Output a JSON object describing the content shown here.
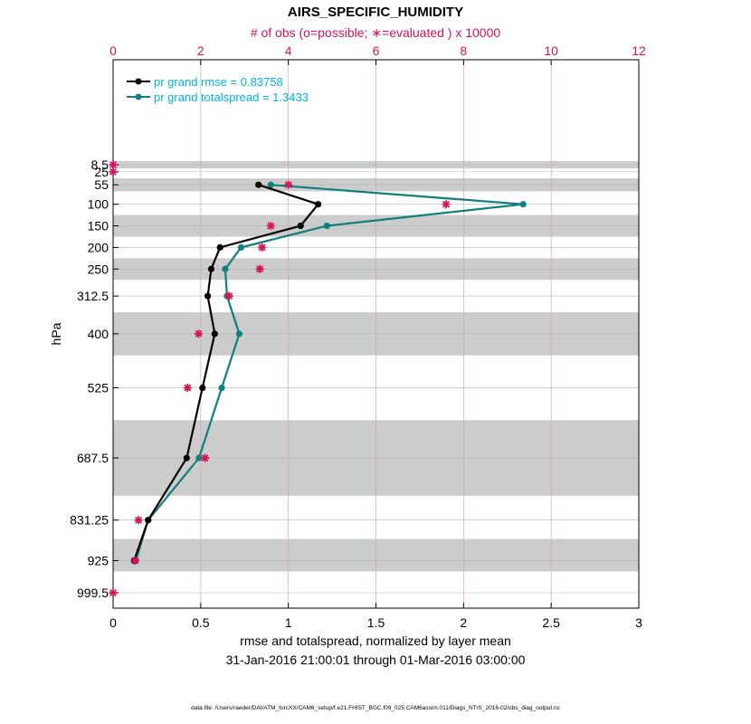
{
  "chart_data": {
    "type": "line",
    "title": "AIRS_SPECIFIC_HUMIDITY",
    "top_axis_label": "# of obs (o=possible; ∗=evaluated ) x 10000",
    "xlabel": "rmse and totalspread, normalized by layer mean",
    "subtitle": "31-Jan-2016 21:00:01 through 01-Mar-2016 03:00:00",
    "ylabel": "hPa",
    "footnote": "data file: /Users/raeder/DAI/ATM_forcXX/CAM6_setup/f.e21.FHIST_BGC.f09_025.CAM6assim.011/Diags_NTrS_2016-02/obs_diag_output.nc",
    "xlim": [
      0,
      3
    ],
    "top_xlim": [
      0,
      12
    ],
    "x_ticks": [
      "0",
      "0.5",
      "1",
      "1.5",
      "2",
      "2.5",
      "3"
    ],
    "top_ticks": [
      "0",
      "2",
      "4",
      "6",
      "8",
      "10",
      "12"
    ],
    "y_ticks": [
      "8.5",
      "25",
      "55",
      "100",
      "150",
      "200",
      "250",
      "312.5",
      "400",
      "525",
      "687.5",
      "831.25",
      "925",
      "999.5"
    ],
    "levels": [
      8.5,
      25,
      55,
      100,
      150,
      200,
      250,
      312.5,
      400,
      525,
      687.5,
      831.25,
      925,
      999.5
    ],
    "shaded_bands_hPa": [
      [
        0,
        17
      ],
      [
        40,
        70
      ],
      [
        125,
        175
      ],
      [
        225,
        275
      ],
      [
        350,
        450
      ],
      [
        600,
        775
      ],
      [
        875,
        950
      ]
    ],
    "series": [
      {
        "name": "pr grand rmse",
        "legend": "pr grand rmse = 0.83758",
        "color": "#000000",
        "levels": [
          55,
          100,
          150,
          200,
          250,
          312.5,
          400,
          525,
          687.5,
          831.25,
          925
        ],
        "values": [
          0.83,
          1.17,
          1.07,
          0.61,
          0.56,
          0.54,
          0.58,
          0.51,
          0.42,
          0.2,
          0.12
        ]
      },
      {
        "name": "pr grand totalspread",
        "legend": "pr grand totalspread = 1.3433",
        "color": "#0f7f7f",
        "levels": [
          55,
          100,
          150,
          200,
          250,
          312.5,
          400,
          525,
          687.5,
          831.25,
          925
        ],
        "values": [
          0.9,
          2.34,
          1.22,
          0.73,
          0.64,
          0.65,
          0.72,
          0.62,
          0.49,
          0.2,
          0.13
        ]
      }
    ],
    "obs_counts_x10000": {
      "levels": [
        8.5,
        25,
        55,
        100,
        150,
        200,
        250,
        312.5,
        400,
        525,
        687.5,
        831.25,
        925,
        999.5
      ],
      "evaluated": [
        0,
        0,
        4.0,
        7.6,
        3.6,
        3.4,
        3.35,
        2.65,
        1.95,
        1.7,
        2.1,
        0.58,
        0.5,
        0
      ],
      "color": "#d6135a"
    }
  }
}
